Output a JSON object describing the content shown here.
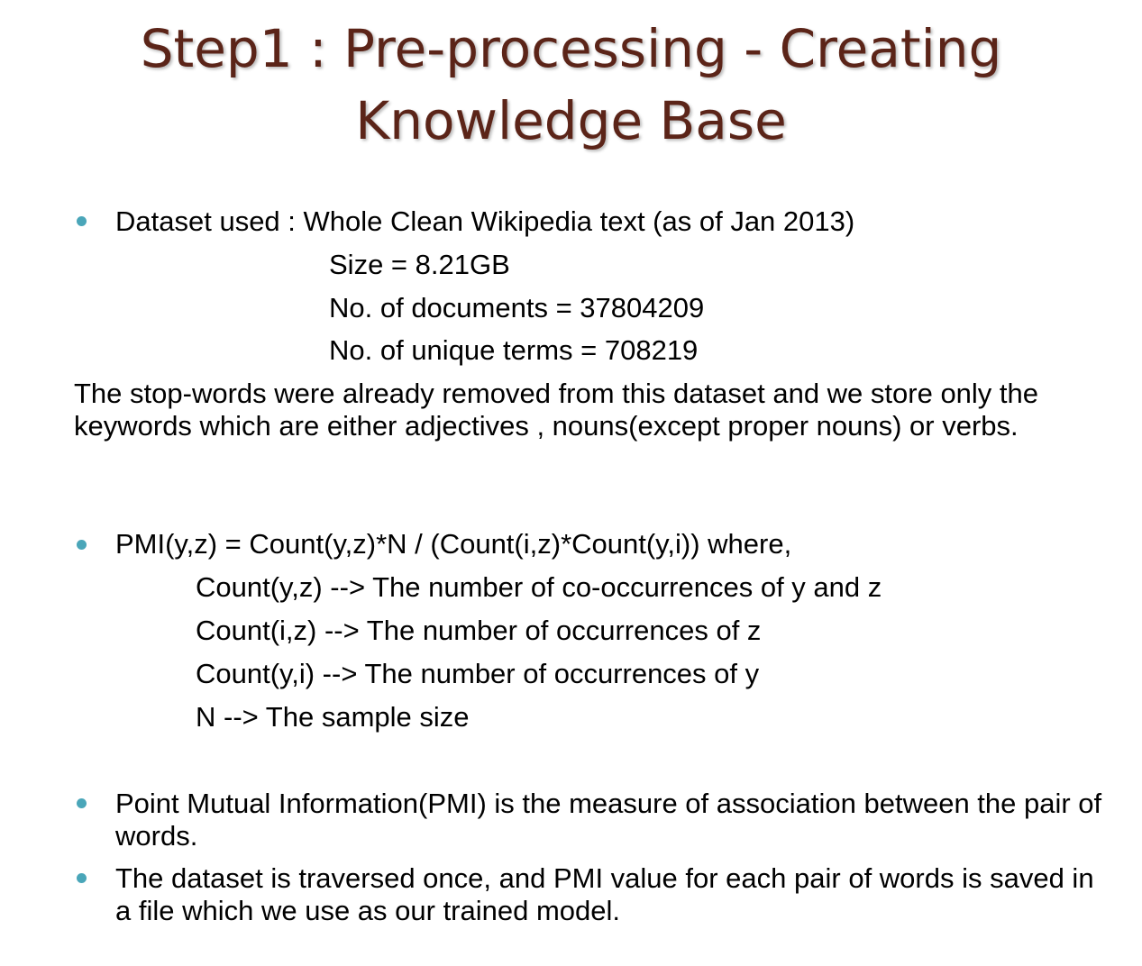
{
  "slide": {
    "title_line1": "Step1 :  Pre-processing - Creating",
    "title_line2": "Knowledge Base",
    "dataset": {
      "lead": "Dataset used :  Whole Clean Wikipedia text (as of  Jan 2013)",
      "size": "Size = 8.21GB",
      "documents": "No. of documents = 37804209",
      "terms": "No. of unique terms = 708219"
    },
    "stopwords_paragraph": "The stop-words were already removed from this dataset and we store only the keywords which are either adjectives , nouns(except proper nouns) or verbs.",
    "pmi": {
      "formula": "PMI(y,z) = Count(y,z)*N / (Count(i,z)*Count(y,i)) where,",
      "def1": "Count(y,z) --> The number of co-occurrences of y and z",
      "def2": "Count(i,z) --> The number of occurrences of z",
      "def3": "Count(y,i) --> The number of occurrences of y",
      "def4": "N --> The sample size"
    },
    "bullets": {
      "pmi_measure": "Point Mutual Information(PMI) is the measure of association between the pair of words.",
      "traversal": "The dataset is traversed once, and PMI value for each pair of words is saved in a file which we use as our trained model."
    },
    "colors": {
      "title": "#5b2418",
      "bullet": "#4aa6b9",
      "text": "#000000"
    }
  }
}
